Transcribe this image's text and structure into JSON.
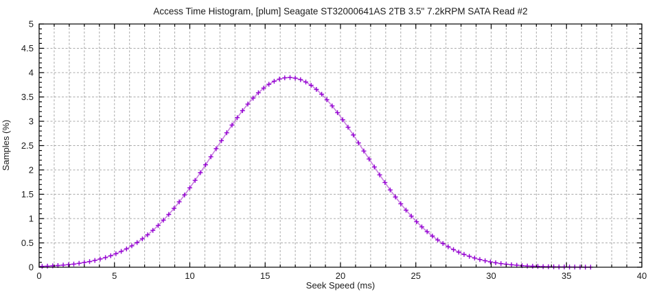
{
  "chart_data": {
    "type": "line",
    "title": "Access Time Histogram, [plum] Seagate ST32000641AS 2TB 3.5\" 7.2kRPM SATA Read #2",
    "xlabel": "Seek Speed (ms)",
    "ylabel": "Samples (%)",
    "xlim": [
      0,
      40
    ],
    "ylim": [
      0,
      5
    ],
    "x_major_tick_step": 5,
    "x_minor_tick_step": 1,
    "y_major_tick_step": 0.5,
    "y_minor_tick_step": 0.1,
    "x_tick_labels": [
      "0",
      "5",
      "10",
      "15",
      "20",
      "25",
      "30",
      "35",
      "40"
    ],
    "y_tick_labels": [
      "0",
      "0.5",
      "1",
      "1.5",
      "2",
      "2.5",
      "3",
      "3.5",
      "4",
      "4.5",
      "5"
    ],
    "grid": "dashed, vertical every 1 ms, horizontal every 0.5 %",
    "legend_position": "none",
    "colors": {
      "line": "#c87fe0",
      "marker": "#9400d3",
      "grid": "#a9a9a9",
      "frame": "#000000",
      "text": "#1a1a1a"
    },
    "series": [
      {
        "name": "plum Seagate ST32000641AS 2TB 3.5\" 7.2kRPM SATA Read #2",
        "marker": "plus",
        "peak": {
          "x": 16.65,
          "y": 3.9
        },
        "x_start": 0.2,
        "x_step": 0.35,
        "y": [
          0.018,
          0.023,
          0.028,
          0.035,
          0.043,
          0.053,
          0.065,
          0.08,
          0.097,
          0.116,
          0.14,
          0.167,
          0.199,
          0.235,
          0.277,
          0.325,
          0.378,
          0.439,
          0.507,
          0.583,
          0.666,
          0.758,
          0.858,
          0.967,
          1.084,
          1.21,
          1.343,
          1.484,
          1.632,
          1.786,
          1.944,
          2.106,
          2.271,
          2.436,
          2.601,
          2.764,
          2.922,
          3.074,
          3.218,
          3.353,
          3.476,
          3.586,
          3.681,
          3.76,
          3.823,
          3.867,
          3.893,
          3.9,
          3.888,
          3.856,
          3.807,
          3.739,
          3.655,
          3.556,
          3.442,
          3.315,
          3.178,
          3.031,
          2.877,
          2.718,
          2.555,
          2.389,
          2.224,
          2.06,
          1.898,
          1.741,
          1.589,
          1.443,
          1.304,
          1.173,
          1.05,
          0.935,
          0.829,
          0.731,
          0.641,
          0.56,
          0.487,
          0.421,
          0.362,
          0.31,
          0.264,
          0.224,
          0.189,
          0.159,
          0.133,
          0.11,
          0.091,
          0.075,
          0.062,
          0.05,
          0.041,
          0.033,
          0.026,
          0.021,
          0.017,
          0.013,
          0.011,
          0.008,
          0.006,
          0.005,
          0.004,
          0.003,
          0.002,
          0.002,
          0.001
        ]
      }
    ]
  }
}
